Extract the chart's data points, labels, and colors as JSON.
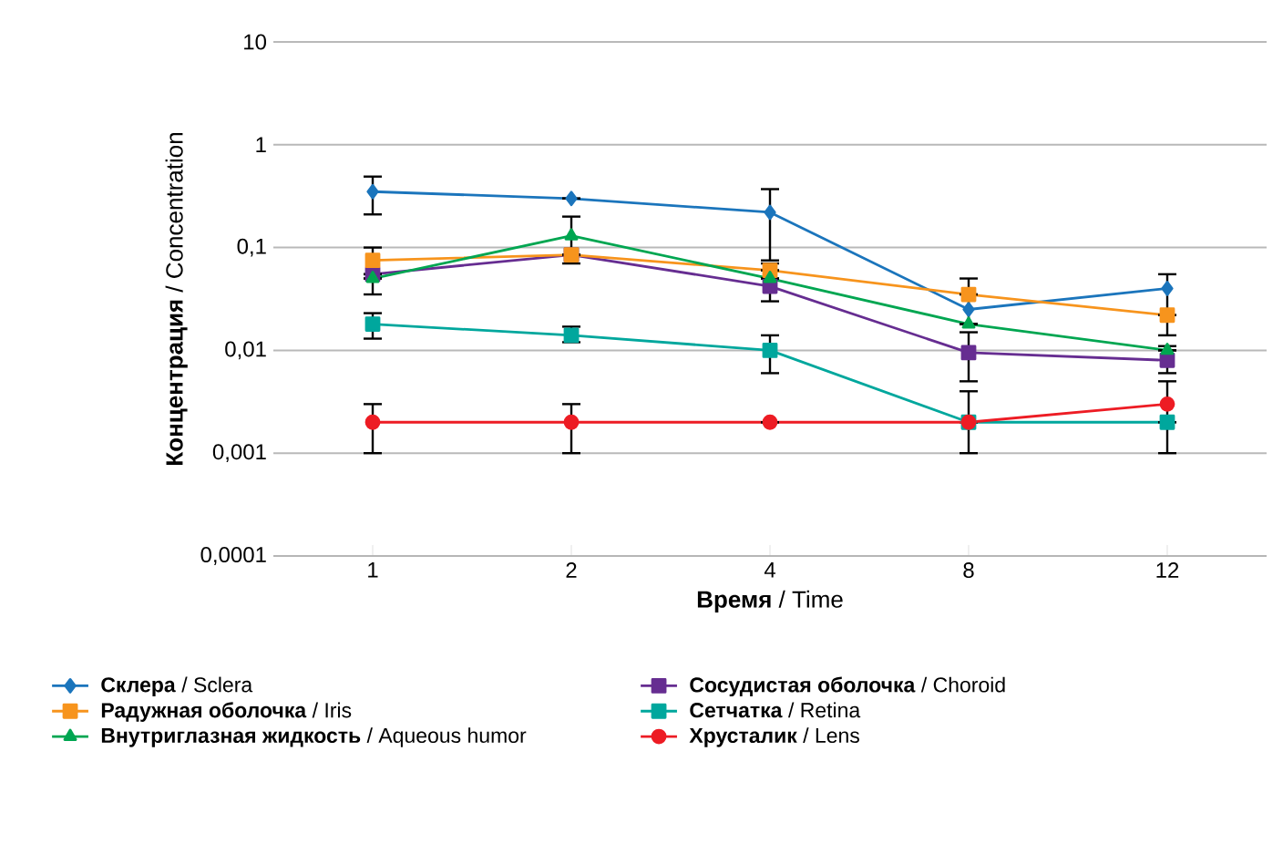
{
  "chart_data": {
    "type": "line",
    "xlabel": "**Время** / Time",
    "ylabel": "**Концентрация** / Concentration",
    "categories": [
      "1",
      "2",
      "4",
      "8",
      "12"
    ],
    "log": true,
    "ylim": [
      0.0001,
      10
    ],
    "yticks": [
      {
        "value": 0.0001,
        "label": "0,0001"
      },
      {
        "value": 0.001,
        "label": "0,001"
      },
      {
        "value": 0.01,
        "label": "0,01"
      },
      {
        "value": 0.1,
        "label": "0,1"
      },
      {
        "value": 1,
        "label": "1"
      },
      {
        "value": 10,
        "label": "10"
      }
    ],
    "grid": "y",
    "legend": "bottom",
    "series": [
      {
        "name": "**Склера** / Sclera",
        "color": "#1b75bc",
        "marker": "diamond",
        "values": [
          0.35,
          0.3,
          0.22,
          0.025,
          0.04
        ],
        "errors": [
          [
            0.21,
            0.49
          ],
          null,
          [
            0.075,
            0.37
          ],
          [
            0.018,
            0.05
          ],
          [
            0.014,
            0.055
          ]
        ]
      },
      {
        "name": "**Сосудистая оболочка** / Choroid",
        "color": "#662d91",
        "marker": "square",
        "values": [
          0.055,
          0.085,
          0.042,
          0.0095,
          0.008
        ],
        "errors": [
          null,
          null,
          [
            0.03,
            0.07
          ],
          [
            0.005,
            0.015
          ],
          [
            0.006,
            0.011
          ]
        ]
      },
      {
        "name": "**Радужная оболочка** / Iris",
        "color": "#f7941d",
        "marker": "square",
        "values": [
          0.075,
          0.085,
          0.06,
          0.035,
          0.022
        ],
        "errors": [
          [
            0.035,
            0.1
          ],
          null,
          null,
          null,
          null
        ]
      },
      {
        "name": "**Сетчатка** / Retina",
        "color": "#00a79d",
        "marker": "square",
        "values": [
          0.018,
          0.014,
          0.01,
          0.002,
          0.002
        ],
        "errors": [
          [
            0.013,
            0.023
          ],
          [
            0.012,
            0.017
          ],
          [
            0.006,
            0.014
          ],
          null,
          null
        ]
      },
      {
        "name": "**Внутриглазная жидкость** / Aqueous humor",
        "color": "#00a651",
        "marker": "triangle",
        "values": [
          0.05,
          0.13,
          0.05,
          0.018,
          0.01
        ],
        "errors": [
          null,
          [
            0.07,
            0.2
          ],
          null,
          null,
          null
        ]
      },
      {
        "name": "**Хрусталик** / Lens",
        "color": "#ed1c24",
        "marker": "circle",
        "values": [
          0.002,
          0.002,
          0.002,
          0.002,
          0.003
        ],
        "errors": [
          [
            0.001,
            0.003
          ],
          [
            0.001,
            0.003
          ],
          null,
          [
            0.001,
            0.004
          ],
          [
            0.001,
            0.005
          ]
        ]
      }
    ]
  }
}
